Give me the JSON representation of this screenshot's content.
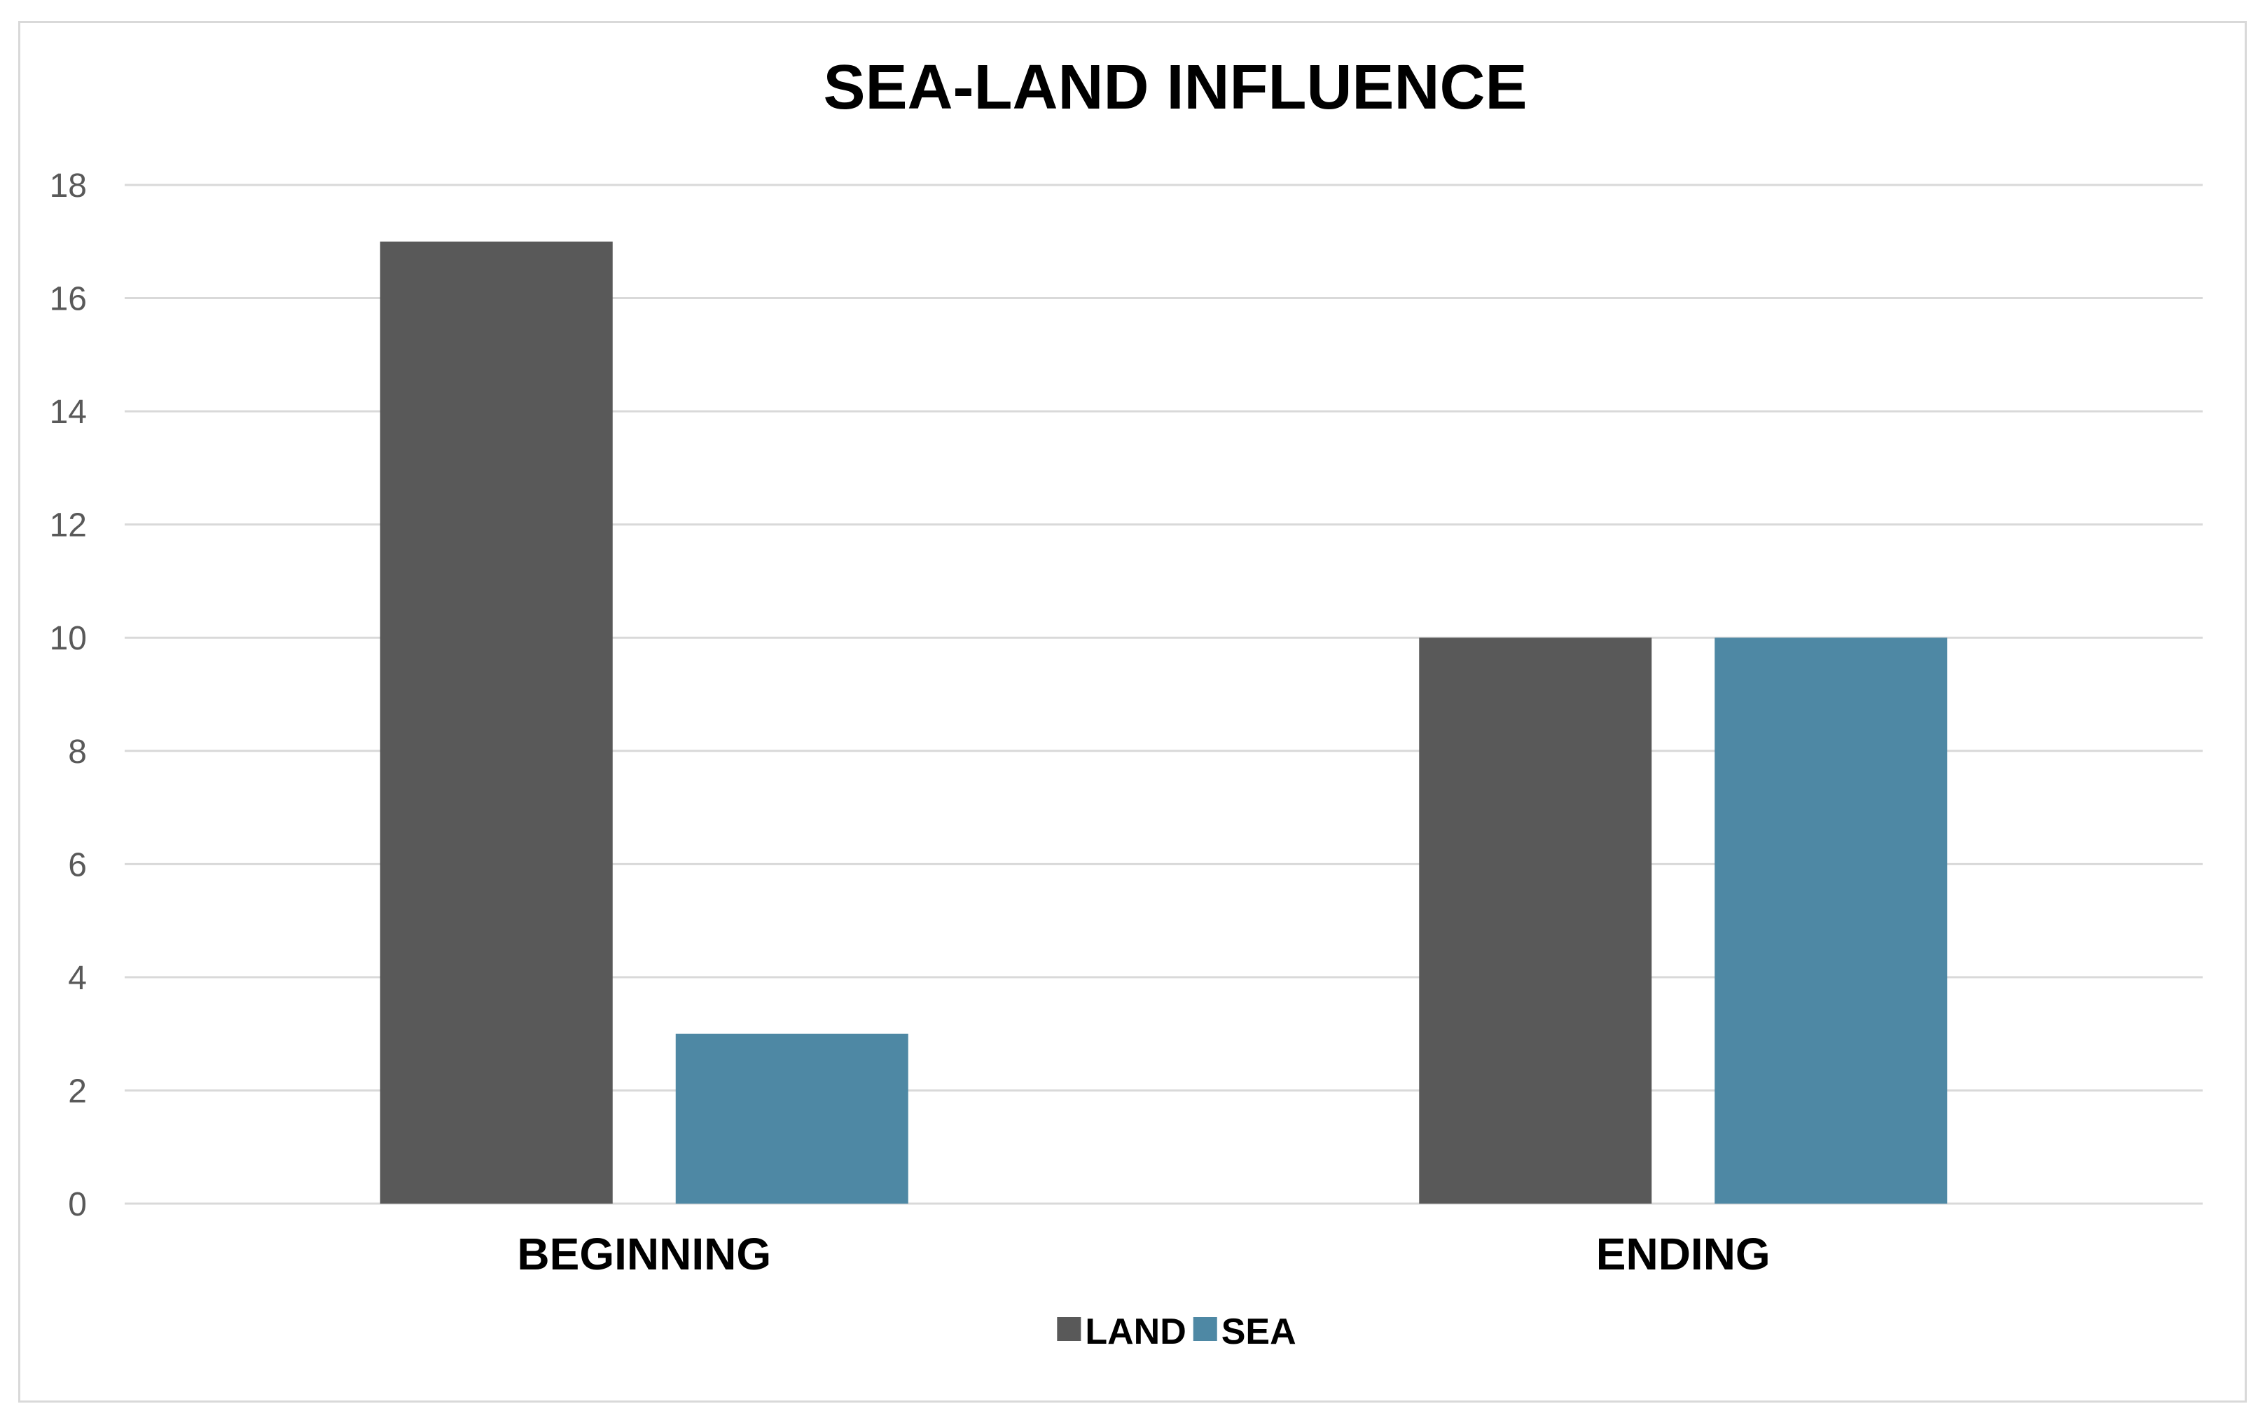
{
  "chart_data": {
    "type": "bar",
    "title": "SEA-LAND INFLUENCE",
    "categories": [
      "BEGINNING",
      "ENDING"
    ],
    "series": [
      {
        "name": "LAND",
        "color": "#595959",
        "values": [
          17,
          10
        ]
      },
      {
        "name": "SEA",
        "color": "#4e88a4",
        "values": [
          3,
          10
        ]
      }
    ],
    "yticks": [
      "0",
      "2",
      "4",
      "6",
      "8",
      "10",
      "12",
      "14",
      "16",
      "18"
    ],
    "ylim": [
      0,
      18
    ],
    "grid": true,
    "legend_position": "bottom"
  }
}
